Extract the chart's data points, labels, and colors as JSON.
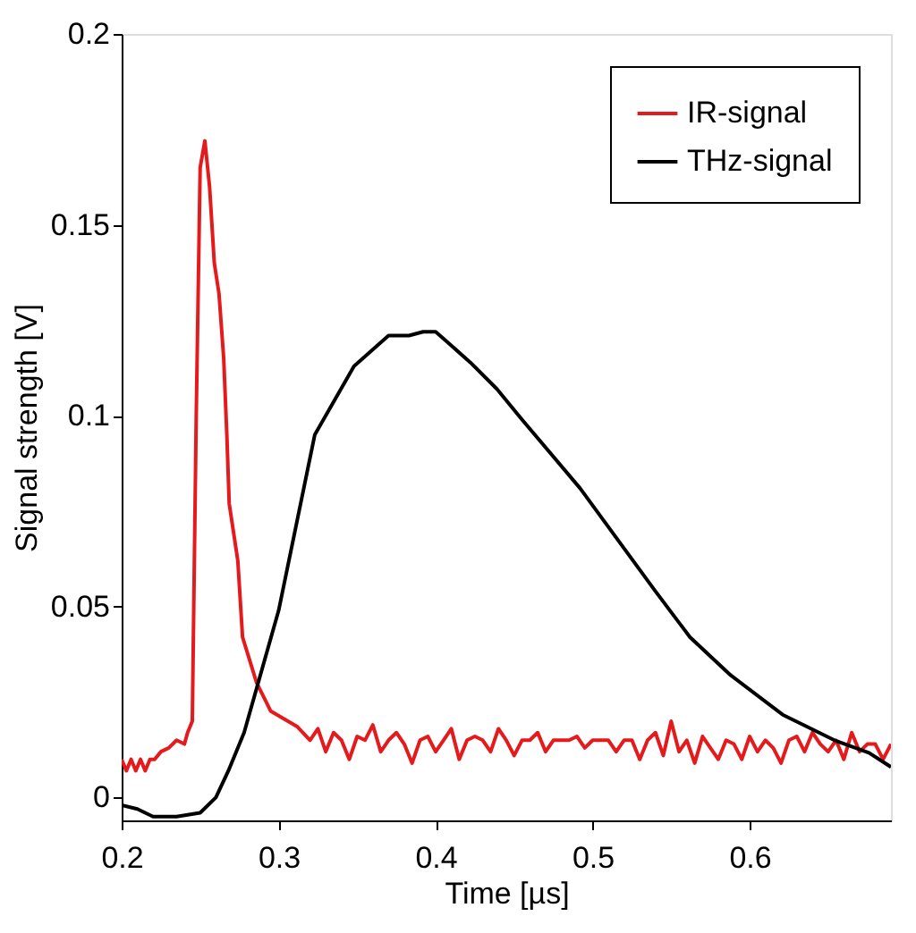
{
  "chart_data": {
    "type": "line",
    "xlabel": "Time [µs]",
    "ylabel": "Signal strength [V]",
    "xlim": [
      0.2,
      0.69
    ],
    "ylim": [
      -0.006,
      0.2
    ],
    "xticks": [
      0.2,
      0.3,
      0.4,
      0.5,
      0.6
    ],
    "yticks": [
      0,
      0.05,
      0.1,
      0.15,
      0.2
    ],
    "grid": false,
    "legend": "top right",
    "line_style": "solid",
    "marker": "none",
    "series": [
      {
        "name": "IR-signal",
        "color": "#e41a1c",
        "x": [
          0.2,
          0.203,
          0.206,
          0.209,
          0.212,
          0.215,
          0.218,
          0.221,
          0.225,
          0.23,
          0.235,
          0.24,
          0.242,
          0.245,
          0.2475,
          0.25,
          0.253,
          0.256,
          0.259,
          0.262,
          0.265,
          0.267,
          0.2685,
          0.274,
          0.277,
          0.286,
          0.295,
          0.312,
          0.32,
          0.325,
          0.33,
          0.335,
          0.34,
          0.345,
          0.35,
          0.355,
          0.36,
          0.365,
          0.37,
          0.375,
          0.38,
          0.385,
          0.39,
          0.395,
          0.4,
          0.405,
          0.41,
          0.415,
          0.42,
          0.425,
          0.43,
          0.435,
          0.44,
          0.445,
          0.45,
          0.455,
          0.46,
          0.465,
          0.47,
          0.475,
          0.48,
          0.485,
          0.49,
          0.495,
          0.5,
          0.505,
          0.51,
          0.515,
          0.52,
          0.525,
          0.53,
          0.535,
          0.54,
          0.545,
          0.55,
          0.555,
          0.56,
          0.565,
          0.57,
          0.575,
          0.58,
          0.585,
          0.59,
          0.595,
          0.6,
          0.605,
          0.61,
          0.615,
          0.62,
          0.625,
          0.63,
          0.635,
          0.64,
          0.645,
          0.65,
          0.655,
          0.66,
          0.665,
          0.67,
          0.675,
          0.68,
          0.685,
          0.69
        ],
        "values": [
          0.01,
          0.007,
          0.01,
          0.007,
          0.01,
          0.007,
          0.01,
          0.01,
          0.012,
          0.013,
          0.015,
          0.014,
          0.017,
          0.02,
          0.1,
          0.165,
          0.172,
          0.16,
          0.14,
          0.132,
          0.115,
          0.095,
          0.077,
          0.062,
          0.042,
          0.03,
          0.0226,
          0.0185,
          0.015,
          0.018,
          0.012,
          0.017,
          0.015,
          0.01,
          0.016,
          0.015,
          0.019,
          0.012,
          0.015,
          0.017,
          0.014,
          0.009,
          0.015,
          0.016,
          0.012,
          0.015,
          0.018,
          0.01,
          0.015,
          0.016,
          0.015,
          0.012,
          0.018,
          0.015,
          0.011,
          0.015,
          0.015,
          0.017,
          0.012,
          0.015,
          0.015,
          0.015,
          0.016,
          0.013,
          0.015,
          0.015,
          0.015,
          0.012,
          0.015,
          0.015,
          0.01,
          0.015,
          0.017,
          0.011,
          0.02,
          0.012,
          0.015,
          0.009,
          0.016,
          0.013,
          0.01,
          0.015,
          0.014,
          0.01,
          0.016,
          0.012,
          0.015,
          0.013,
          0.009,
          0.015,
          0.016,
          0.012,
          0.017,
          0.014,
          0.012,
          0.015,
          0.01,
          0.017,
          0.012,
          0.014,
          0.014,
          0.01,
          0.014
        ]
      },
      {
        "name": "THz-signal",
        "color": "#000000",
        "x": [
          0.2,
          0.21,
          0.22,
          0.235,
          0.25,
          0.26,
          0.268,
          0.278,
          0.3,
          0.323,
          0.348,
          0.37,
          0.383,
          0.392,
          0.4,
          0.411,
          0.422,
          0.439,
          0.455,
          0.492,
          0.54,
          0.562,
          0.588,
          0.621,
          0.654,
          0.676,
          0.69
        ],
        "values": [
          -0.002,
          -0.003,
          -0.005,
          -0.005,
          -0.004,
          0.0,
          0.007,
          0.017,
          0.049,
          0.095,
          0.113,
          0.121,
          0.121,
          0.122,
          0.122,
          0.118,
          0.114,
          0.107,
          0.099,
          0.081,
          0.054,
          0.042,
          0.032,
          0.0217,
          0.015,
          0.0117,
          0.008
        ]
      }
    ]
  }
}
